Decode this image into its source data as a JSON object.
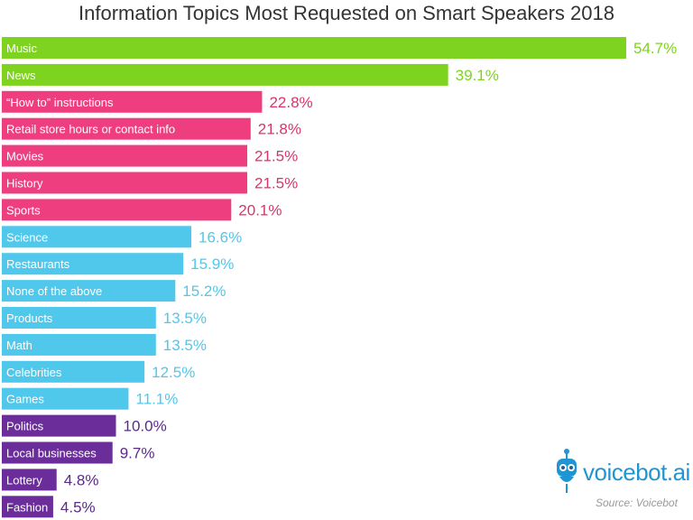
{
  "chart_data": {
    "type": "bar",
    "orientation": "horizontal",
    "title": "Information Topics Most Requested on Smart Speakers 2018",
    "categories": [
      "Music",
      "News",
      "“How to” instructions",
      "Retail store hours or contact info",
      "Movies",
      "History",
      "Sports",
      "Science",
      "Restaurants",
      "None of the above",
      "Products",
      "Math",
      "Celebrities",
      "Games",
      "Politics",
      "Local businesses",
      "Lottery",
      "Fashion"
    ],
    "values": [
      54.7,
      39.1,
      22.8,
      21.8,
      21.5,
      21.5,
      20.1,
      16.6,
      15.9,
      15.2,
      13.5,
      13.5,
      12.5,
      11.1,
      10.0,
      9.7,
      4.8,
      4.5
    ],
    "value_labels": [
      "54.7%",
      "39.1%",
      "22.8%",
      "21.8%",
      "21.5%",
      "21.5%",
      "20.1%",
      "16.6%",
      "15.9%",
      "15.2%",
      "13.5%",
      "13.5%",
      "12.5%",
      "11.1%",
      "10.0%",
      "9.7%",
      "4.8%",
      "4.5%"
    ],
    "groups": [
      0,
      0,
      1,
      1,
      1,
      1,
      1,
      2,
      2,
      2,
      2,
      2,
      2,
      2,
      3,
      3,
      3,
      3
    ],
    "group_colors": [
      "#7ed321",
      "#ee3e7f",
      "#4fc8ec",
      "#6b2d9a"
    ],
    "label_colors": [
      "#7ed321",
      "#d9336e",
      "#4fc8ec",
      "#5a2a86"
    ],
    "xlim": [
      0,
      54.7
    ],
    "grid": false,
    "legend": "none"
  },
  "branding": {
    "logo_text": "voicebot.ai",
    "source": "Source: Voicebot"
  }
}
